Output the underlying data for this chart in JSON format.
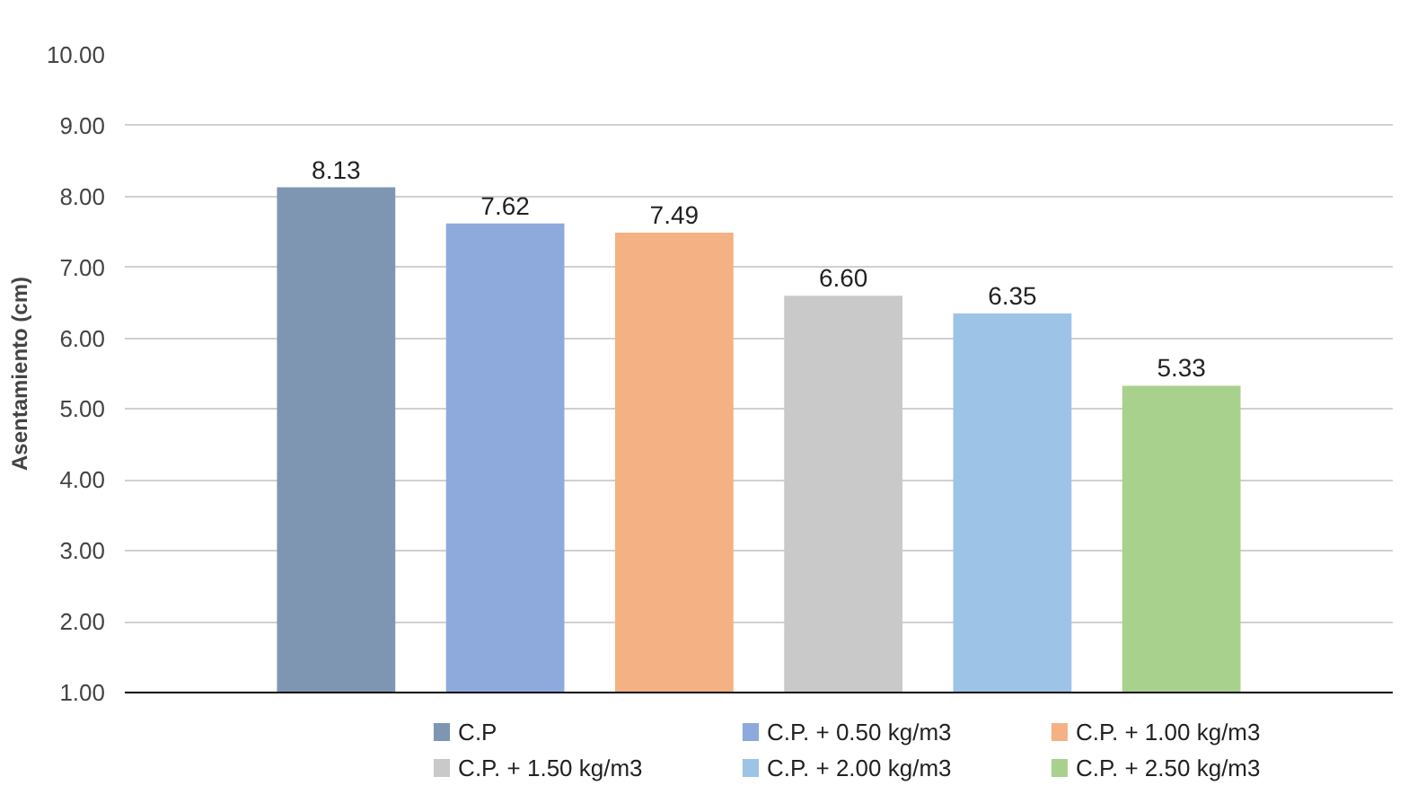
{
  "chart_data": {
    "type": "bar",
    "ylabel": "Asentamiento (cm)",
    "categories": [
      null
    ],
    "series": [
      {
        "name": "C.P",
        "color": "#7f96b2",
        "values": [
          8.13
        ],
        "value_labels": [
          "8.13"
        ]
      },
      {
        "name": "C.P. + 0.50 kg/m3",
        "color": "#8eaadc",
        "values": [
          7.62
        ],
        "value_labels": [
          "7.62"
        ]
      },
      {
        "name": "C.P. + 1.00 kg/m3",
        "color": "#f4b183",
        "values": [
          7.49
        ],
        "value_labels": [
          "7.49"
        ]
      },
      {
        "name": "C.P. + 1.50 kg/m3",
        "color": "#c9c9c9",
        "values": [
          6.6
        ],
        "value_labels": [
          "6.60"
        ]
      },
      {
        "name": "C.P. + 2.00 kg/m3",
        "color": "#9dc3e6",
        "values": [
          6.35
        ],
        "value_labels": [
          "6.35"
        ]
      },
      {
        "name": "C.P. + 2.50 kg/m3",
        "color": "#a9d18e",
        "values": [
          5.33
        ],
        "value_labels": [
          "5.33"
        ]
      }
    ],
    "ylim": [
      1,
      10
    ],
    "yticks": [
      {
        "value": 1,
        "label": "1.00"
      },
      {
        "value": 2,
        "label": "2.00"
      },
      {
        "value": 3,
        "label": "3.00"
      },
      {
        "value": 4,
        "label": "4.00"
      },
      {
        "value": 5,
        "label": "5.00"
      },
      {
        "value": 6,
        "label": "6.00"
      },
      {
        "value": 7,
        "label": "7.00"
      },
      {
        "value": 8,
        "label": "8.00"
      },
      {
        "value": 9,
        "label": "9.00"
      },
      {
        "value": 10,
        "label": "10.00"
      }
    ],
    "grid": "y",
    "legend": "bottom",
    "tick_labels": "y"
  }
}
